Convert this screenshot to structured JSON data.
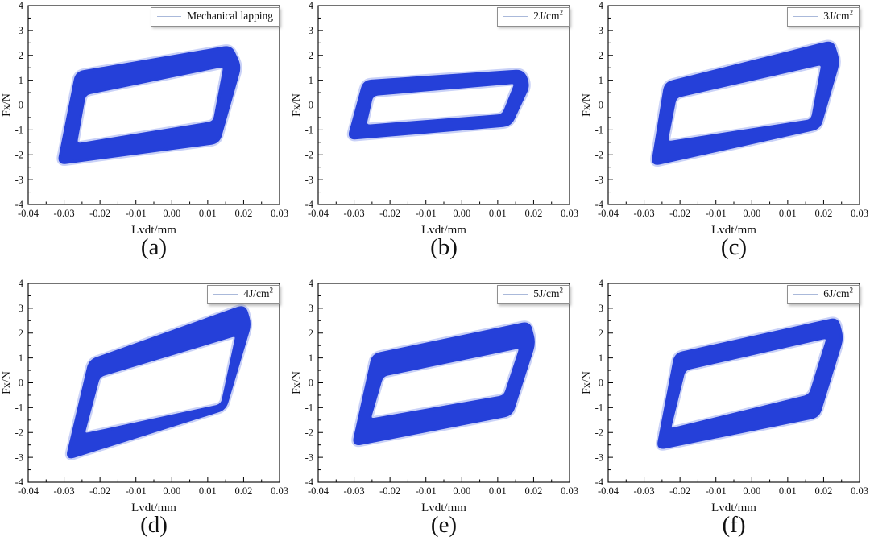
{
  "figure": {
    "title": "",
    "colors": {
      "loop": "#2540d9",
      "loop_glow": "#3c5ae1",
      "legend_line": "#aab9da",
      "frame": "#000000",
      "text": "#111111",
      "background": "#ffffff"
    },
    "axes": {
      "xlabel": "Lvdt/mm",
      "ylabel": "Fx/N",
      "xlim": [
        -0.04,
        0.03
      ],
      "ylim": [
        -4,
        4
      ],
      "x_major_step": 0.01,
      "y_major_step": 1,
      "x_minor_step": 0.005,
      "y_minor_step": 0.5,
      "x_tick_labels": [
        "-0.04",
        "-0.03",
        "-0.02",
        "-0.01",
        "0.00",
        "0.01",
        "0.02",
        "0.03"
      ],
      "y_tick_labels": [
        "-4",
        "-3",
        "-2",
        "-1",
        "0",
        "1",
        "2",
        "3",
        "4"
      ],
      "grid": false,
      "legend_position": "top-right"
    }
  },
  "chart_data": [
    {
      "type": "line",
      "panel_label": "(a)",
      "legend": "Mechanical lapping",
      "legend_sup": "",
      "xlabel": "Lvdt/mm",
      "ylabel": "Fx/N",
      "xlim": [
        -0.04,
        0.03
      ],
      "ylim": [
        -4,
        4
      ],
      "x_extent": [
        -0.0315,
        0.019
      ],
      "y_extent": [
        -2.35,
        2.35
      ],
      "loop_outer": [
        [
          -0.0265,
          1.3
        ],
        [
          0.0165,
          2.35
        ],
        [
          0.019,
          1.55
        ],
        [
          0.013,
          -1.5
        ],
        [
          -0.0315,
          -2.35
        ]
      ],
      "loop_inner": [
        [
          -0.0243,
          0.45
        ],
        [
          0.0148,
          1.6
        ],
        [
          0.0118,
          -0.7
        ],
        [
          -0.0268,
          -1.6
        ]
      ]
    },
    {
      "type": "line",
      "panel_label": "(b)",
      "legend": "2J/cm",
      "legend_sup": "2",
      "xlabel": "Lvdt/mm",
      "ylabel": "Fx/N",
      "xlim": [
        -0.04,
        0.03
      ],
      "ylim": [
        -4,
        4
      ],
      "x_extent": [
        -0.0315,
        0.0187
      ],
      "y_extent": [
        -1.35,
        1.4
      ],
      "loop_outer": [
        [
          -0.0272,
          0.95
        ],
        [
          0.017,
          1.38
        ],
        [
          0.0187,
          0.8
        ],
        [
          0.0135,
          -0.8
        ],
        [
          -0.0315,
          -1.35
        ]
      ],
      "loop_inner": [
        [
          -0.025,
          0.42
        ],
        [
          0.0152,
          0.92
        ],
        [
          0.0115,
          -0.42
        ],
        [
          -0.027,
          -0.85
        ]
      ]
    },
    {
      "type": "line",
      "panel_label": "(c)",
      "legend": "3J/cm",
      "legend_sup": "2",
      "xlabel": "Lvdt/mm",
      "ylabel": "Fx/N",
      "xlim": [
        -0.04,
        0.03
      ],
      "ylim": [
        -4,
        4
      ],
      "x_extent": [
        -0.0277,
        0.0242
      ],
      "y_extent": [
        -2.4,
        2.55
      ],
      "loop_outer": [
        [
          -0.024,
          0.88
        ],
        [
          0.0225,
          2.55
        ],
        [
          0.0242,
          1.75
        ],
        [
          0.0188,
          -0.92
        ],
        [
          -0.0277,
          -2.4
        ]
      ],
      "loop_inner": [
        [
          -0.0213,
          0.34
        ],
        [
          0.0198,
          1.68
        ],
        [
          0.0168,
          -0.62
        ],
        [
          -0.0238,
          -1.52
        ]
      ]
    },
    {
      "type": "line",
      "panel_label": "(d)",
      "legend": "4J/cm",
      "legend_sup": "2",
      "xlabel": "Lvdt/mm",
      "ylabel": "Fx/N",
      "xlim": [
        -0.04,
        0.03
      ],
      "ylim": [
        -4,
        4
      ],
      "x_extent": [
        -0.0292,
        0.0218
      ],
      "y_extent": [
        -3.05,
        3.1
      ],
      "loop_outer": [
        [
          -0.0228,
          0.88
        ],
        [
          0.0203,
          3.1
        ],
        [
          0.0218,
          2.35
        ],
        [
          0.0148,
          -1.05
        ],
        [
          -0.0292,
          -3.05
        ]
      ],
      "loop_inner": [
        [
          -0.0203,
          0.28
        ],
        [
          0.0182,
          1.95
        ],
        [
          0.014,
          -0.9
        ],
        [
          -0.0247,
          -2.1
        ]
      ]
    },
    {
      "type": "line",
      "panel_label": "(e)",
      "legend": "5J/cm",
      "legend_sup": "2",
      "xlabel": "Lvdt/mm",
      "ylabel": "Fx/N",
      "xlim": [
        -0.04,
        0.03
      ],
      "ylim": [
        -4,
        4
      ],
      "x_extent": [
        -0.0302,
        0.0202
      ],
      "y_extent": [
        -2.5,
        2.42
      ],
      "loop_outer": [
        [
          -0.0247,
          1.12
        ],
        [
          0.0188,
          2.42
        ],
        [
          0.0202,
          1.6
        ],
        [
          0.0138,
          -1.28
        ],
        [
          -0.0302,
          -2.5
        ]
      ],
      "loop_inner": [
        [
          -0.0222,
          0.3
        ],
        [
          0.0165,
          1.45
        ],
        [
          0.012,
          -0.55
        ],
        [
          -0.0258,
          -1.5
        ]
      ]
    },
    {
      "type": "line",
      "panel_label": "(f)",
      "legend": "6J/cm",
      "legend_sup": "2",
      "xlabel": "Lvdt/mm",
      "ylabel": "Fx/N",
      "xlim": [
        -0.04,
        0.03
      ],
      "ylim": [
        -4,
        4
      ],
      "x_extent": [
        -0.0262,
        0.0252
      ],
      "y_extent": [
        -2.65,
        2.6
      ],
      "loop_outer": [
        [
          -0.0212,
          1.15
        ],
        [
          0.0238,
          2.58
        ],
        [
          0.0252,
          1.8
        ],
        [
          0.0185,
          -1.35
        ],
        [
          -0.0262,
          -2.65
        ]
      ],
      "loop_inner": [
        [
          -0.0188,
          0.55
        ],
        [
          0.0213,
          1.85
        ],
        [
          0.0162,
          -0.52
        ],
        [
          -0.023,
          -1.9
        ]
      ]
    }
  ]
}
